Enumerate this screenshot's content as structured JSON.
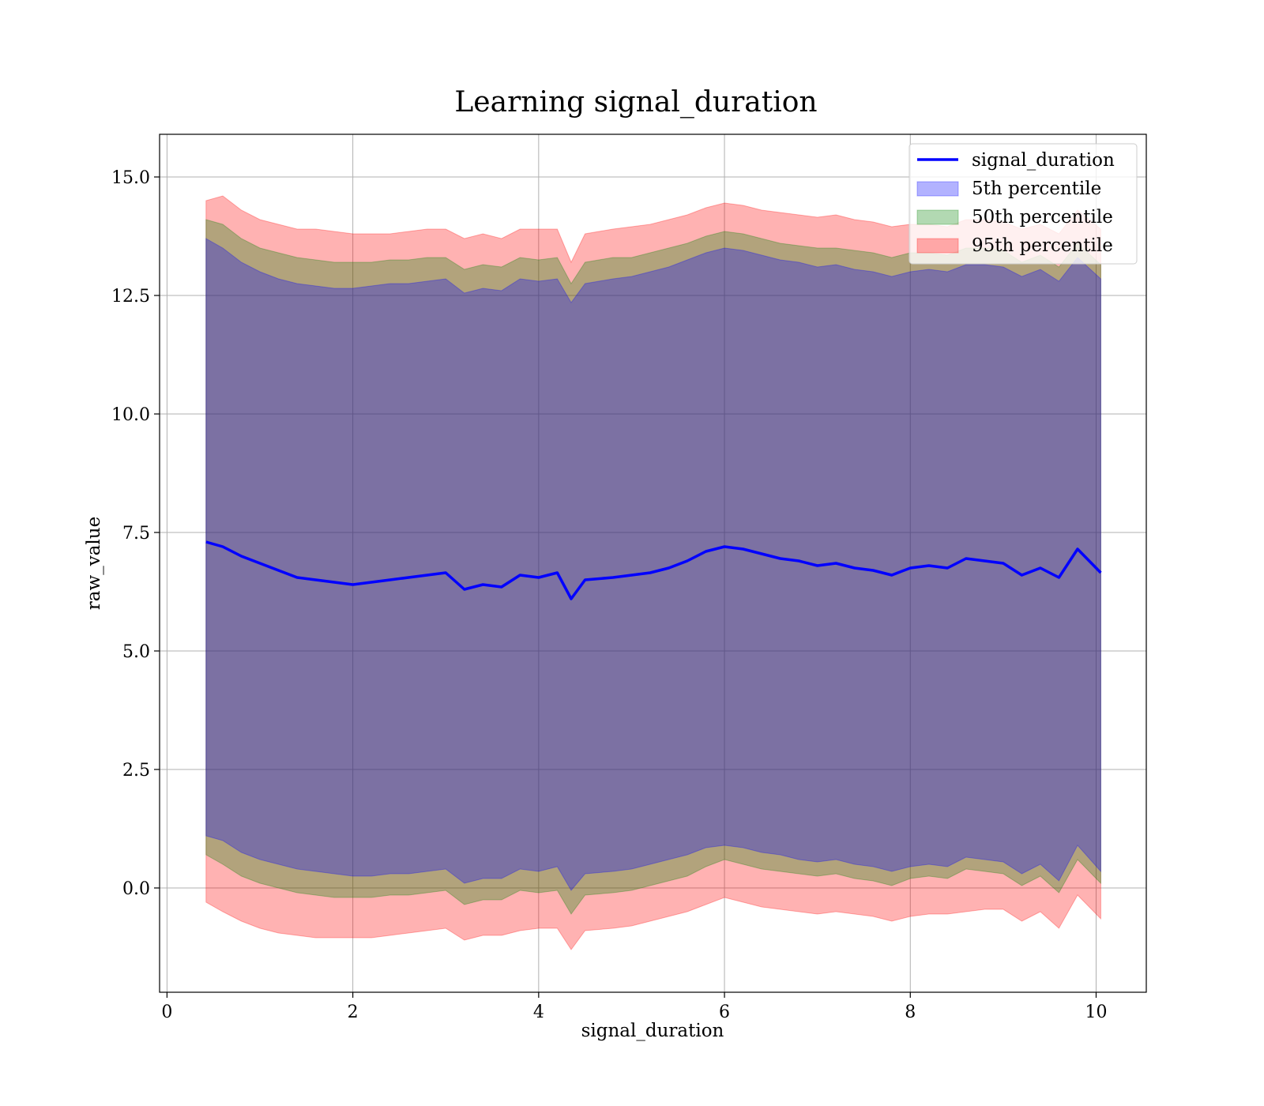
{
  "chart_data": {
    "type": "line",
    "title": "Learning signal_duration",
    "xlabel": "signal_duration",
    "ylabel": "raw_value",
    "xlim": [
      -0.08,
      10.54
    ],
    "ylim": [
      -2.2,
      15.9
    ],
    "xticks": [
      0,
      2,
      4,
      6,
      8,
      10
    ],
    "xtick_labels": [
      "0",
      "2",
      "4",
      "6",
      "8",
      "10"
    ],
    "yticks": [
      0.0,
      2.5,
      5.0,
      7.5,
      10.0,
      12.5,
      15.0
    ],
    "ytick_labels": [
      "0.0",
      "2.5",
      "5.0",
      "7.5",
      "10.0",
      "12.5",
      "15.0"
    ],
    "grid": true,
    "legend_position": "top-right",
    "legend": {
      "line": "signal_duration",
      "p5": "5th percentile",
      "p50": "50th percentile",
      "p95": "95th percentile"
    },
    "colors": {
      "line": "#0000ff",
      "p5": "#0000ff",
      "p50": "#008000",
      "p95": "#ff0000"
    },
    "x": [
      0.42,
      0.6,
      0.8,
      1.0,
      1.2,
      1.4,
      1.6,
      1.8,
      2.0,
      2.2,
      2.4,
      2.6,
      2.8,
      3.0,
      3.2,
      3.4,
      3.6,
      3.8,
      4.0,
      4.2,
      4.35,
      4.5,
      4.8,
      5.0,
      5.2,
      5.4,
      5.6,
      5.8,
      6.0,
      6.2,
      6.4,
      6.6,
      6.8,
      7.0,
      7.2,
      7.4,
      7.6,
      7.8,
      8.0,
      8.2,
      8.4,
      8.6,
      8.8,
      9.0,
      9.2,
      9.4,
      9.6,
      9.8,
      10.05
    ],
    "mean": [
      7.3,
      7.2,
      7.0,
      6.85,
      6.7,
      6.55,
      6.5,
      6.45,
      6.4,
      6.45,
      6.5,
      6.55,
      6.6,
      6.65,
      6.3,
      6.4,
      6.35,
      6.6,
      6.55,
      6.65,
      6.1,
      6.5,
      6.55,
      6.6,
      6.65,
      6.75,
      6.9,
      7.1,
      7.2,
      7.15,
      7.05,
      6.95,
      6.9,
      6.8,
      6.85,
      6.75,
      6.7,
      6.6,
      6.75,
      6.8,
      6.75,
      6.95,
      6.9,
      6.85,
      6.6,
      6.75,
      6.55,
      7.15,
      6.65
    ],
    "p95_upper": [
      14.5,
      14.6,
      14.3,
      14.1,
      14.0,
      13.9,
      13.9,
      13.85,
      13.8,
      13.8,
      13.8,
      13.85,
      13.9,
      13.9,
      13.7,
      13.8,
      13.7,
      13.9,
      13.9,
      13.9,
      13.2,
      13.8,
      13.9,
      13.95,
      14.0,
      14.1,
      14.2,
      14.35,
      14.45,
      14.4,
      14.3,
      14.25,
      14.2,
      14.15,
      14.2,
      14.1,
      14.05,
      13.95,
      14.0,
      14.0,
      13.95,
      14.1,
      14.1,
      14.05,
      13.9,
      14.0,
      13.8,
      14.3,
      13.9
    ],
    "p95_lower": [
      -0.3,
      -0.5,
      -0.7,
      -0.85,
      -0.95,
      -1.0,
      -1.05,
      -1.05,
      -1.05,
      -1.05,
      -1.0,
      -0.95,
      -0.9,
      -0.85,
      -1.1,
      -1.0,
      -1.0,
      -0.9,
      -0.85,
      -0.85,
      -1.3,
      -0.9,
      -0.85,
      -0.8,
      -0.7,
      -0.6,
      -0.5,
      -0.35,
      -0.2,
      -0.3,
      -0.4,
      -0.45,
      -0.5,
      -0.55,
      -0.5,
      -0.55,
      -0.6,
      -0.7,
      -0.6,
      -0.55,
      -0.55,
      -0.5,
      -0.45,
      -0.45,
      -0.7,
      -0.5,
      -0.85,
      -0.15,
      -0.65
    ],
    "p50_upper": [
      14.1,
      14.0,
      13.7,
      13.5,
      13.4,
      13.3,
      13.25,
      13.2,
      13.2,
      13.2,
      13.25,
      13.25,
      13.3,
      13.3,
      13.05,
      13.15,
      13.1,
      13.3,
      13.25,
      13.3,
      12.75,
      13.2,
      13.3,
      13.3,
      13.4,
      13.5,
      13.6,
      13.75,
      13.85,
      13.8,
      13.7,
      13.6,
      13.55,
      13.5,
      13.5,
      13.45,
      13.4,
      13.3,
      13.4,
      13.4,
      13.35,
      13.5,
      13.5,
      13.45,
      13.2,
      13.35,
      13.1,
      13.6,
      13.15
    ],
    "p50_lower": [
      0.7,
      0.5,
      0.25,
      0.1,
      0.0,
      -0.1,
      -0.15,
      -0.2,
      -0.2,
      -0.2,
      -0.15,
      -0.15,
      -0.1,
      -0.05,
      -0.35,
      -0.25,
      -0.25,
      -0.05,
      -0.1,
      -0.05,
      -0.55,
      -0.15,
      -0.1,
      -0.05,
      0.05,
      0.15,
      0.25,
      0.45,
      0.6,
      0.5,
      0.4,
      0.35,
      0.3,
      0.25,
      0.3,
      0.2,
      0.15,
      0.05,
      0.2,
      0.25,
      0.2,
      0.4,
      0.35,
      0.3,
      0.05,
      0.25,
      -0.1,
      0.6,
      0.1
    ],
    "p5_upper": [
      13.7,
      13.5,
      13.2,
      13.0,
      12.85,
      12.75,
      12.7,
      12.65,
      12.65,
      12.7,
      12.75,
      12.75,
      12.8,
      12.85,
      12.55,
      12.65,
      12.6,
      12.85,
      12.8,
      12.85,
      12.35,
      12.75,
      12.85,
      12.9,
      13.0,
      13.1,
      13.25,
      13.4,
      13.5,
      13.45,
      13.35,
      13.25,
      13.2,
      13.1,
      13.15,
      13.05,
      13.0,
      12.9,
      13.0,
      13.05,
      13.0,
      13.15,
      13.15,
      13.1,
      12.9,
      13.05,
      12.8,
      13.3,
      12.85
    ],
    "p5_lower": [
      1.1,
      1.0,
      0.75,
      0.6,
      0.5,
      0.4,
      0.35,
      0.3,
      0.25,
      0.25,
      0.3,
      0.3,
      0.35,
      0.4,
      0.1,
      0.2,
      0.2,
      0.4,
      0.35,
      0.45,
      -0.05,
      0.3,
      0.35,
      0.4,
      0.5,
      0.6,
      0.7,
      0.85,
      0.9,
      0.85,
      0.75,
      0.7,
      0.6,
      0.55,
      0.6,
      0.5,
      0.45,
      0.35,
      0.45,
      0.5,
      0.45,
      0.65,
      0.6,
      0.55,
      0.3,
      0.5,
      0.15,
      0.9,
      0.35
    ]
  }
}
